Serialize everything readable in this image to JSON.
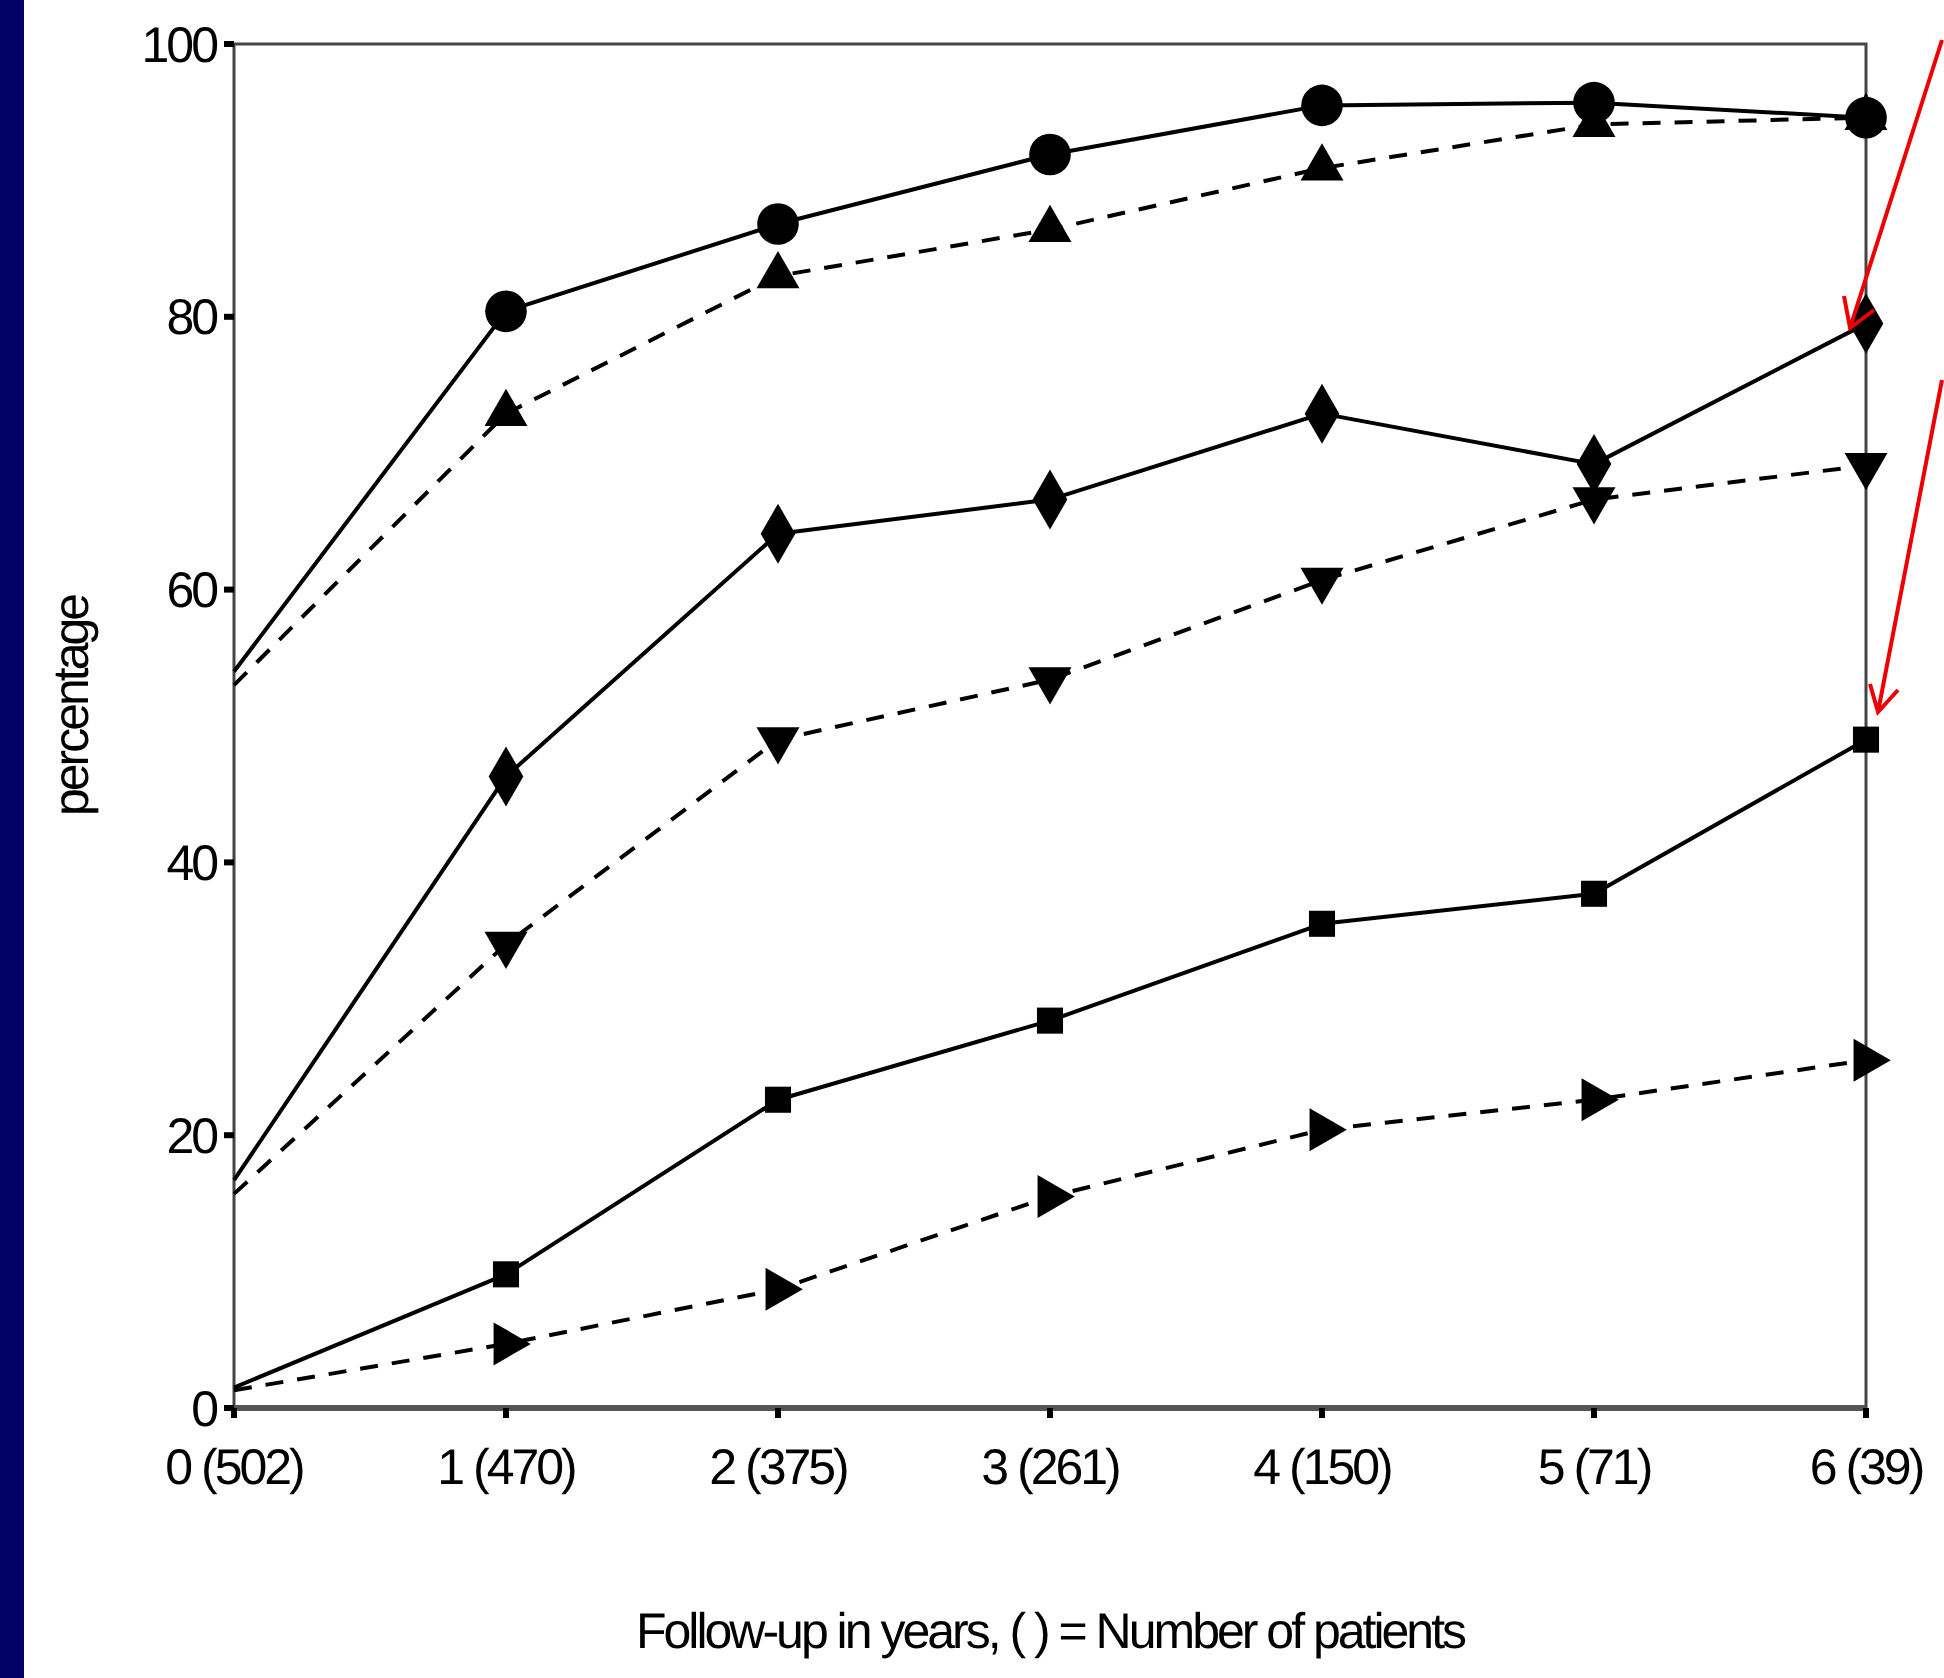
{
  "chart_data": {
    "type": "line",
    "xlabel": "Follow-up in years, (  ) = Number of patients",
    "ylabel": "percentage",
    "categories": [
      "0 (502)",
      "1 (470)",
      "2 (375)",
      "3 (261)",
      "4 (150)",
      "5 (71)",
      "6 (39)"
    ],
    "ylim": [
      0,
      100
    ],
    "yticks": [
      0,
      20,
      40,
      60,
      80,
      100
    ],
    "grid": false,
    "series": [
      {
        "color": "#000000",
        "marker": "circle",
        "line_style": "solid",
        "values": [
          54,
          80.4,
          86.8,
          91.9,
          95.5,
          95.7,
          94.6
        ]
      },
      {
        "color": "#000000",
        "marker": "triangle",
        "line_style": "dashed",
        "values": [
          53,
          72.9,
          83,
          86.4,
          90.9,
          94.1,
          94.6
        ]
      },
      {
        "color": "#000000",
        "marker": "diamond",
        "line_style": "solid",
        "values": [
          16.7,
          46.3,
          64.1,
          66.6,
          72.9,
          69.2,
          79.5
        ]
      },
      {
        "color": "#000000",
        "marker": "triangle-down",
        "line_style": "dashed",
        "values": [
          15.7,
          34,
          49,
          53.4,
          60.7,
          66.6,
          69.1
        ]
      },
      {
        "color": "#000000",
        "marker": "square",
        "line_style": "solid",
        "values": [
          1.5,
          9.8,
          22.6,
          28.4,
          35.5,
          37.7,
          49
        ]
      },
      {
        "color": "#000000",
        "marker": "triangle-right",
        "line_style": "dashed",
        "values": [
          1.3,
          4.7,
          8.7,
          15.5,
          20.4,
          22.6,
          25.5
        ]
      }
    ]
  }
}
